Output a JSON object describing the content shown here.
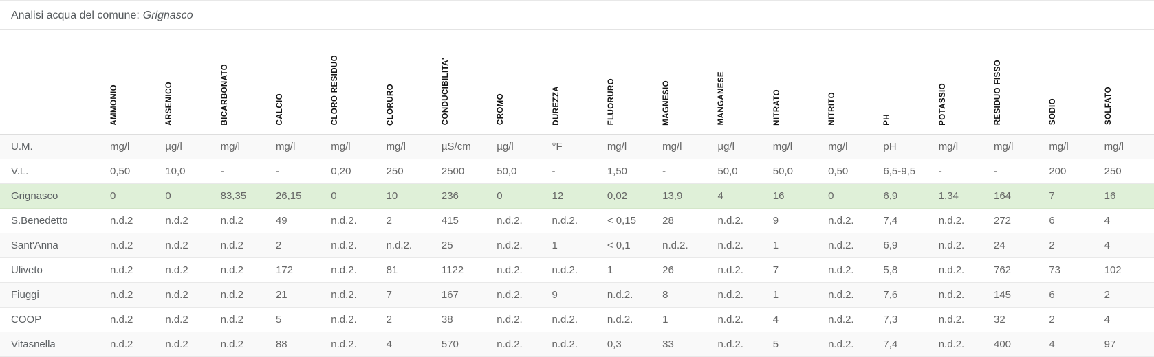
{
  "header": {
    "title_prefix": "Analisi acqua del comune:",
    "municipality": "Grignasco"
  },
  "colors": {
    "highlight_row_bg": "#dff0d8",
    "stripe_row_bg": "#f9f9f9",
    "header_text": "#141414",
    "body_text": "#666666",
    "border": "#e4e4e4"
  },
  "table": {
    "columns": [
      "AMMONIO",
      "ARSENICO",
      "BICARBONATO",
      "CALCIO",
      "CLORO RESIDUO",
      "CLORURO",
      "CONDUCIBILITA'",
      "CROMO",
      "DUREZZA",
      "FLUORURO",
      "MAGNESIO",
      "MANGANESE",
      "NITRATO",
      "NITRITO",
      "PH",
      "POTASSIO",
      "RESIDUO FISSO",
      "SODIO",
      "SOLFATO"
    ],
    "rows": [
      {
        "label": "U.M.",
        "highlight": false,
        "values": [
          "mg/l",
          "µg/l",
          "mg/l",
          "mg/l",
          "mg/l",
          "mg/l",
          "µS/cm",
          "µg/l",
          "°F",
          "mg/l",
          "mg/l",
          "µg/l",
          "mg/l",
          "mg/l",
          "pH",
          "mg/l",
          "mg/l",
          "mg/l",
          "mg/l"
        ]
      },
      {
        "label": "V.L.",
        "highlight": false,
        "values": [
          "0,50",
          "10,0",
          "-",
          "-",
          "0,20",
          "250",
          "2500",
          "50,0",
          "-",
          "1,50",
          "-",
          "50,0",
          "50,0",
          "0,50",
          "6,5-9,5",
          "-",
          "-",
          "200",
          "250"
        ]
      },
      {
        "label": "Grignasco",
        "highlight": true,
        "values": [
          "0",
          "0",
          "83,35",
          "26,15",
          "0",
          "10",
          "236",
          "0",
          "12",
          "0,02",
          "13,9",
          "4",
          "16",
          "0",
          "6,9",
          "1,34",
          "164",
          "7",
          "16"
        ]
      },
      {
        "label": "S.Benedetto",
        "highlight": false,
        "values": [
          "n.d.2",
          "n.d.2",
          "n.d.2",
          "49",
          "n.d.2.",
          "2",
          "415",
          "n.d.2.",
          "n.d.2.",
          "< 0,15",
          "28",
          "n.d.2.",
          "9",
          "n.d.2.",
          "7,4",
          "n.d.2.",
          "272",
          "6",
          "4"
        ]
      },
      {
        "label": "Sant'Anna",
        "highlight": false,
        "values": [
          "n.d.2",
          "n.d.2",
          "n.d.2",
          "2",
          "n.d.2.",
          "n.d.2.",
          "25",
          "n.d.2.",
          "1",
          "< 0,1",
          "n.d.2.",
          "n.d.2.",
          "1",
          "n.d.2.",
          "6,9",
          "n.d.2.",
          "24",
          "2",
          "4"
        ]
      },
      {
        "label": "Uliveto",
        "highlight": false,
        "values": [
          "n.d.2",
          "n.d.2",
          "n.d.2",
          "172",
          "n.d.2.",
          "81",
          "1122",
          "n.d.2.",
          "n.d.2.",
          "1",
          "26",
          "n.d.2.",
          "7",
          "n.d.2.",
          "5,8",
          "n.d.2.",
          "762",
          "73",
          "102"
        ]
      },
      {
        "label": "Fiuggi",
        "highlight": false,
        "values": [
          "n.d.2",
          "n.d.2",
          "n.d.2",
          "21",
          "n.d.2.",
          "7",
          "167",
          "n.d.2.",
          "9",
          "n.d.2.",
          "8",
          "n.d.2.",
          "1",
          "n.d.2.",
          "7,6",
          "n.d.2.",
          "145",
          "6",
          "2"
        ]
      },
      {
        "label": "COOP",
        "highlight": false,
        "values": [
          "n.d.2",
          "n.d.2",
          "n.d.2",
          "5",
          "n.d.2.",
          "2",
          "38",
          "n.d.2.",
          "n.d.2.",
          "n.d.2.",
          "1",
          "n.d.2.",
          "4",
          "n.d.2.",
          "7,3",
          "n.d.2.",
          "32",
          "2",
          "4"
        ]
      },
      {
        "label": "Vitasnella",
        "highlight": false,
        "values": [
          "n.d.2",
          "n.d.2",
          "n.d.2",
          "88",
          "n.d.2.",
          "4",
          "570",
          "n.d.2.",
          "n.d.2.",
          "0,3",
          "33",
          "n.d.2.",
          "5",
          "n.d.2.",
          "7,4",
          "n.d.2.",
          "400",
          "4",
          "97"
        ]
      }
    ]
  }
}
